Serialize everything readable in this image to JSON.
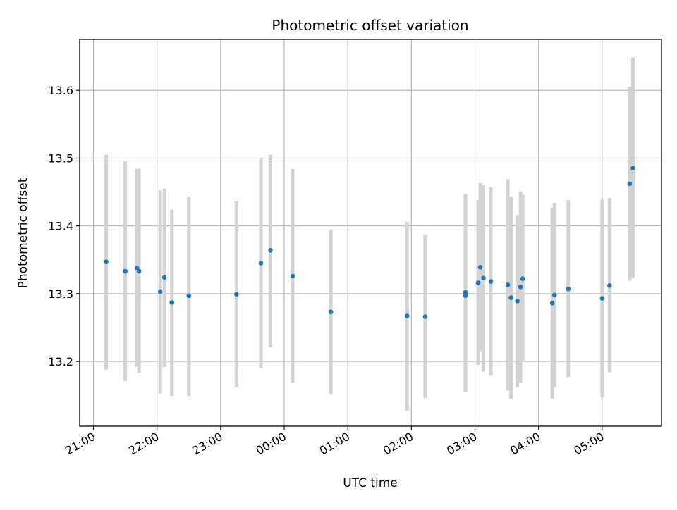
{
  "chart_data": {
    "type": "scatter",
    "title": "Photometric offset variation",
    "xlabel": "UTC time",
    "ylabel": "Photometric offset",
    "x_is_time": true,
    "xlim": [
      "20:47",
      "05:56"
    ],
    "ylim": [
      13.1045,
      13.675
    ],
    "grid": true,
    "colors": {
      "points": "#1f77b4",
      "errorbars": "#d3d3d3"
    },
    "x_ticks": [
      "21:00",
      "22:00",
      "23:00",
      "00:00",
      "01:00",
      "02:00",
      "03:00",
      "04:00",
      "05:00"
    ],
    "y_ticks": [
      "13.2",
      "13.3",
      "13.4",
      "13.5",
      "13.6"
    ],
    "points": [
      {
        "x": "21:12",
        "y": 13.347,
        "lo": 13.188,
        "hi": 13.505
      },
      {
        "x": "21:30",
        "y": 13.333,
        "lo": 13.171,
        "hi": 13.495
      },
      {
        "x": "21:41",
        "y": 13.338,
        "lo": 13.192,
        "hi": 13.484
      },
      {
        "x": "21:43",
        "y": 13.333,
        "lo": 13.183,
        "hi": 13.484
      },
      {
        "x": "22:03",
        "y": 13.303,
        "lo": 13.153,
        "hi": 13.453
      },
      {
        "x": "22:07",
        "y": 13.324,
        "lo": 13.192,
        "hi": 13.455
      },
      {
        "x": "22:14",
        "y": 13.287,
        "lo": 13.149,
        "hi": 13.424
      },
      {
        "x": "22:30",
        "y": 13.297,
        "lo": 13.149,
        "hi": 13.443
      },
      {
        "x": "23:15",
        "y": 13.299,
        "lo": 13.162,
        "hi": 13.436
      },
      {
        "x": "23:38",
        "y": 13.345,
        "lo": 13.19,
        "hi": 13.5
      },
      {
        "x": "23:47",
        "y": 13.364,
        "lo": 13.221,
        "hi": 13.505
      },
      {
        "x": "00:08",
        "y": 13.326,
        "lo": 13.168,
        "hi": 13.484
      },
      {
        "x": "00:44",
        "y": 13.273,
        "lo": 13.151,
        "hi": 13.395
      },
      {
        "x": "01:56",
        "y": 13.267,
        "lo": 13.127,
        "hi": 13.406
      },
      {
        "x": "02:13",
        "y": 13.266,
        "lo": 13.146,
        "hi": 13.387
      },
      {
        "x": "02:51",
        "y": 13.297,
        "lo": 13.155,
        "hi": 13.447
      },
      {
        "x": "02:51",
        "y": 13.302,
        "lo": 13.158,
        "hi": 13.446
      },
      {
        "x": "03:03",
        "y": 13.316,
        "lo": 13.195,
        "hi": 13.438
      },
      {
        "x": "03:05",
        "y": 13.339,
        "lo": 13.215,
        "hi": 13.463
      },
      {
        "x": "03:08",
        "y": 13.323,
        "lo": 13.185,
        "hi": 13.46
      },
      {
        "x": "03:15",
        "y": 13.318,
        "lo": 13.179,
        "hi": 13.457
      },
      {
        "x": "03:31",
        "y": 13.313,
        "lo": 13.157,
        "hi": 13.469
      },
      {
        "x": "03:34",
        "y": 13.294,
        "lo": 13.145,
        "hi": 13.443
      },
      {
        "x": "03:40",
        "y": 13.289,
        "lo": 13.162,
        "hi": 13.416
      },
      {
        "x": "03:43",
        "y": 13.31,
        "lo": 13.168,
        "hi": 13.451
      },
      {
        "x": "03:45",
        "y": 13.322,
        "lo": 13.199,
        "hi": 13.446
      },
      {
        "x": "04:13",
        "y": 13.286,
        "lo": 13.145,
        "hi": 13.427
      },
      {
        "x": "04:15",
        "y": 13.298,
        "lo": 13.162,
        "hi": 13.434
      },
      {
        "x": "04:28",
        "y": 13.307,
        "lo": 13.177,
        "hi": 13.438
      },
      {
        "x": "05:00",
        "y": 13.293,
        "lo": 13.147,
        "hi": 13.439
      },
      {
        "x": "05:07",
        "y": 13.312,
        "lo": 13.184,
        "hi": 13.441
      },
      {
        "x": "05:26",
        "y": 13.462,
        "lo": 13.319,
        "hi": 13.605
      },
      {
        "x": "05:29",
        "y": 13.485,
        "lo": 13.323,
        "hi": 13.648
      }
    ]
  }
}
